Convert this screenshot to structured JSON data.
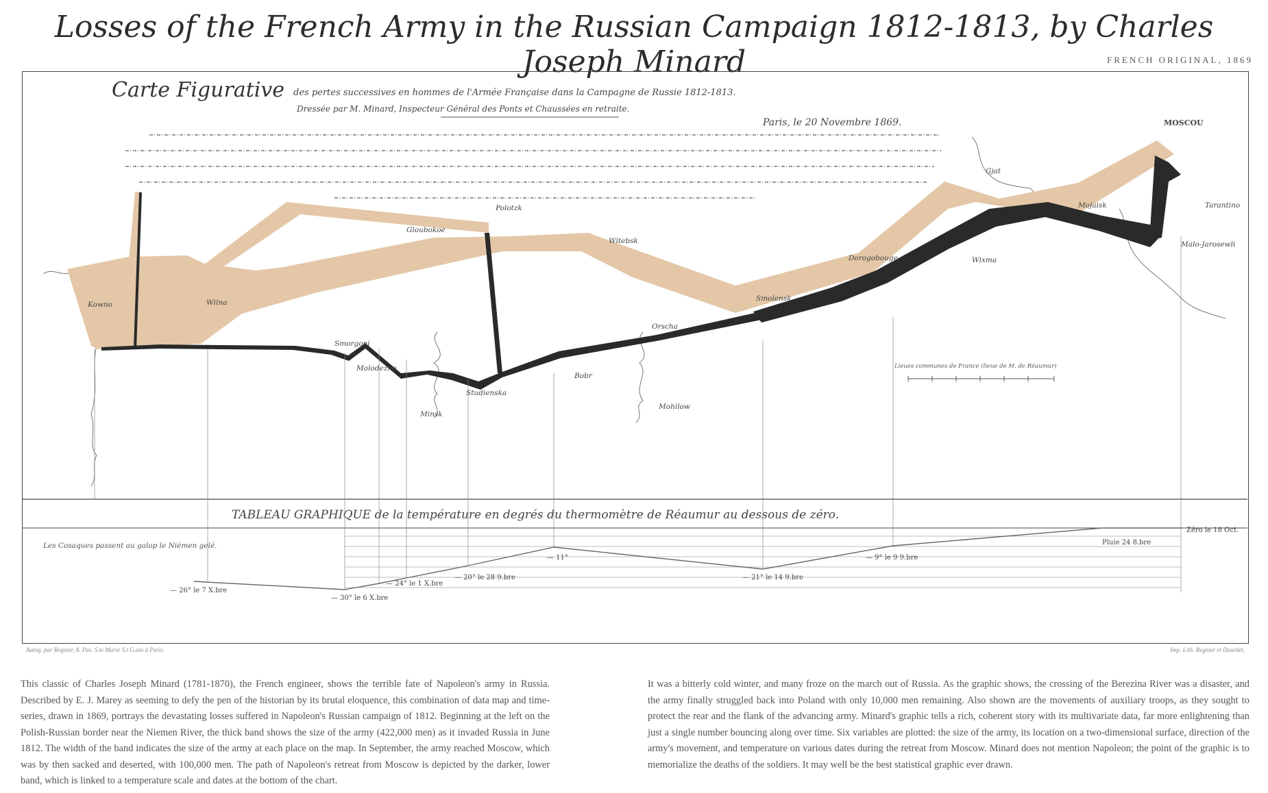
{
  "title": "Losses of the French Army in the Russian Campaign 1812-1813, by Charles Joseph Minard",
  "original_note": "FRENCH ORIGINAL, 1869",
  "map": {
    "heading": "Carte Figurative",
    "heading_rest": "des pertes successives en hommes de l'Armée Française dans la Campagne de Russie 1812-1813.",
    "author_line": "Dressée par M. Minard, Inspecteur Général des Ponts et Chaussées en retraite.",
    "place_date": "Paris, le 20 Novembre 1869.",
    "table_title": "TABLEAU GRAPHIQUE de la température en degrés du thermomètre de Réaumur au dessous de zéro.",
    "cities": [
      {
        "name": "MOSCOU",
        "id": "moscou"
      },
      {
        "name": "Kowno",
        "id": "kowno"
      },
      {
        "name": "Wilna",
        "id": "wilna"
      },
      {
        "name": "Polotzk",
        "id": "polotzk"
      },
      {
        "name": "Gloubokoe",
        "id": "gloubokoe"
      },
      {
        "name": "Witebsk",
        "id": "witebsk"
      },
      {
        "name": "Smolensk",
        "id": "smolensk"
      },
      {
        "name": "Dorogobouge",
        "id": "dorogobouge"
      },
      {
        "name": "Wixma",
        "id": "wixma"
      },
      {
        "name": "Gjat",
        "id": "gjat"
      },
      {
        "name": "Mojaisk",
        "id": "mojaisk"
      },
      {
        "name": "Tarantino",
        "id": "tarantino"
      },
      {
        "name": "Malo-Jarosewli",
        "id": "malo"
      },
      {
        "name": "Smorgoni",
        "id": "smorgoni"
      },
      {
        "name": "Molodezno",
        "id": "molodezno"
      },
      {
        "name": "Studienska",
        "id": "studienska"
      },
      {
        "name": "Bobr",
        "id": "bobr"
      },
      {
        "name": "Orscha",
        "id": "orscha"
      },
      {
        "name": "Minsk",
        "id": "minsk"
      },
      {
        "name": "Mohilow",
        "id": "mohilow"
      }
    ],
    "temperatures": [
      {
        "label": "Zéro le 18 Oct.",
        "id": "t0"
      },
      {
        "label": "Pluie 24 8.bre",
        "id": "t1"
      },
      {
        "label": "— 9° le 9 9.bre",
        "id": "t2"
      },
      {
        "label": "— 21° le 14 9.bre",
        "id": "t3"
      },
      {
        "label": "— 11°",
        "id": "t4"
      },
      {
        "label": "— 20° le 28 9.bre",
        "id": "t5"
      },
      {
        "label": "— 24° le 1 X.bre",
        "id": "t6"
      },
      {
        "label": "— 30° le 6 X.bre",
        "id": "t7"
      },
      {
        "label": "— 26° le 7 X.bre",
        "id": "t8"
      }
    ],
    "temp_note": "Les Cosaques passent au galop le Niémen gelé.",
    "scale_label": "Lieues communes de France (lieue de M. de Réaumur)",
    "footer_left": "Autog. par Regnier, 8. Pas. S.te Marie S.t G.ain à Paris.",
    "footer_right": "Imp. Lith. Regnier et Dourdet."
  },
  "colors": {
    "advance": "#e3c7a7",
    "retreat": "#2a2a2a"
  },
  "caption_left": "This classic of Charles Joseph Minard (1781-1870), the French engineer, shows the terrible fate of Napoleon's army in Russia. Described by E. J. Marey as seeming to defy the pen of the historian by its brutal eloquence, this combination of data map and time-series, drawn in 1869, portrays the devastating losses suffered in Napoleon's Russian campaign of 1812. Beginning at the left on the Polish-Russian border near the Niemen River, the thick band shows the size of the army (422,000 men) as it invaded Russia in June 1812. The width of the band indicates the size of the army at each place on the map. In September, the army reached Moscow, which was by then sacked and deserted, with 100,000 men. The path of Napoleon's retreat from Moscow is depicted by the darker, lower band, which is linked to a temperature scale and dates at the bottom of the chart.",
  "caption_right": "It was a bitterly cold winter, and many froze on the march out of Russia. As the graphic shows, the crossing of the Berezina River was a disaster, and the army finally struggled back into Poland with only 10,000 men remaining. Also shown are the movements of auxiliary troops, as they sought to protect the rear and the flank of the advancing army. Minard's graphic tells a rich, coherent story with its multivariate data, far more enlightening than just a single number bouncing along over time. Six variables are plotted: the size of the army, its location on a two-dimensional surface, direction of the army's movement, and temperature on various dates during the retreat from Moscow. Minard does not mention Napoleon; the point of the graphic is to memorialize the deaths of the soldiers. It may well be the best statistical graphic ever drawn."
}
